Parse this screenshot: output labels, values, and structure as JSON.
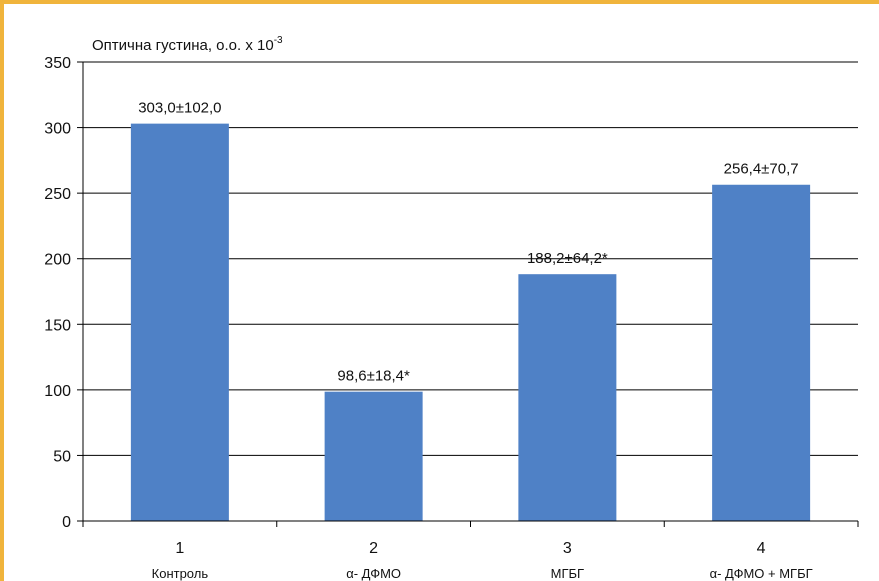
{
  "chart_data": {
    "type": "bar",
    "title": "",
    "ylabel": {
      "main": "Оптична густина, о.о. x 10",
      "superscript": "-3"
    },
    "xlabel": "",
    "ylim": [
      0,
      350
    ],
    "yticks": [
      0,
      50,
      100,
      150,
      200,
      250,
      300,
      350
    ],
    "grid": true,
    "categories": [
      {
        "number": "1",
        "name": "Контроль"
      },
      {
        "number": "2",
        "name": "α- ДФМО"
      },
      {
        "number": "3",
        "name": "МГБГ"
      },
      {
        "number": "4",
        "name": "α- ДФМО + МГБГ"
      }
    ],
    "values": [
      303.0,
      98.6,
      188.2,
      256.4
    ],
    "data_labels": [
      "303,0±102,0",
      "98,6±18,4*",
      "188,2±64,2*",
      "256,4±70,7"
    ],
    "colors": {
      "bar": "#4f81c6",
      "frame": "#f0b43c",
      "grid": "#000000"
    }
  }
}
